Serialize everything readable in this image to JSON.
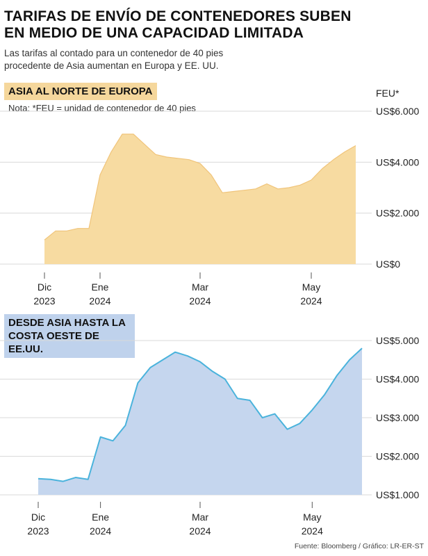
{
  "header": {
    "title_line1": "TARIFAS DE ENVÍO DE CONTENEDORES SUBEN",
    "title_line2": "EN MEDIO DE UNA CAPACIDAD LIMITADA",
    "subtitle_line1": "Las tarifas al contado para un contenedor de 40 pies",
    "subtitle_line2": "procedente de Asia aumentan en Europa y EE. UU."
  },
  "footer": {
    "source": "Fuente: Bloomberg / Gráfico: LR-ER-ST"
  },
  "colors": {
    "top_fill": "#f7dba1",
    "top_stroke": "#f0c47a",
    "top_label_bg": "#f5d79c",
    "bottom_fill": "#c5d6ee",
    "bottom_stroke": "#4ab3dc",
    "bottom_label_bg": "#bfd2ec",
    "grid": "#d9d9d9"
  },
  "chart_data": [
    {
      "type": "area",
      "title": "ASIA AL NORTE DE EUROPA",
      "note": "Nota: *FEU = unidad de contenedor de 40 pies",
      "unit_label": "FEU*",
      "xlabel": "",
      "ylabel": "",
      "ylim": [
        0,
        6000
      ],
      "yticks": [
        0,
        2000,
        4000,
        6000
      ],
      "ytick_labels": [
        "US$0",
        "US$2.000",
        "US$4.000",
        "US$6.000"
      ],
      "grid": true,
      "x_ticks": [
        {
          "line1": "Dic",
          "line2": "2023",
          "index": 0
        },
        {
          "line1": "Ene",
          "line2": "2024",
          "index": 5
        },
        {
          "line1": "Mar",
          "line2": "2024",
          "index": 14
        },
        {
          "line1": "May",
          "line2": "2024",
          "index": 24
        }
      ],
      "x_count": 29,
      "values": [
        950,
        1300,
        1300,
        1400,
        1400,
        3500,
        4400,
        5100,
        5100,
        4700,
        4300,
        4200,
        4150,
        4100,
        3950,
        3500,
        2800,
        2850,
        2900,
        2950,
        3150,
        2950,
        3000,
        3100,
        3300,
        3750,
        4100,
        4400,
        4650
      ]
    },
    {
      "type": "area",
      "title": "DESDE ASIA HASTA LA COSTA OESTE DE EE.UU.",
      "unit_label": "",
      "xlabel": "",
      "ylabel": "",
      "ylim": [
        1000,
        5000
      ],
      "yticks": [
        1000,
        2000,
        3000,
        4000,
        5000
      ],
      "ytick_labels": [
        "US$1.000",
        "US$2.000",
        "US$3.000",
        "US$4.000",
        "US$5.000"
      ],
      "grid": true,
      "x_ticks": [
        {
          "line1": "Dic",
          "line2": "2023",
          "index": 0
        },
        {
          "line1": "Ene",
          "line2": "2024",
          "index": 5
        },
        {
          "line1": "Mar",
          "line2": "2024",
          "index": 13
        },
        {
          "line1": "May",
          "line2": "2024",
          "index": 22
        }
      ],
      "x_count": 27,
      "values": [
        1420,
        1400,
        1350,
        1450,
        1400,
        2500,
        2400,
        2800,
        3900,
        4300,
        4500,
        4700,
        4600,
        4450,
        4200,
        4000,
        3500,
        3450,
        3000,
        3100,
        2700,
        2850,
        3200,
        3600,
        4100,
        4500,
        4800
      ]
    }
  ]
}
